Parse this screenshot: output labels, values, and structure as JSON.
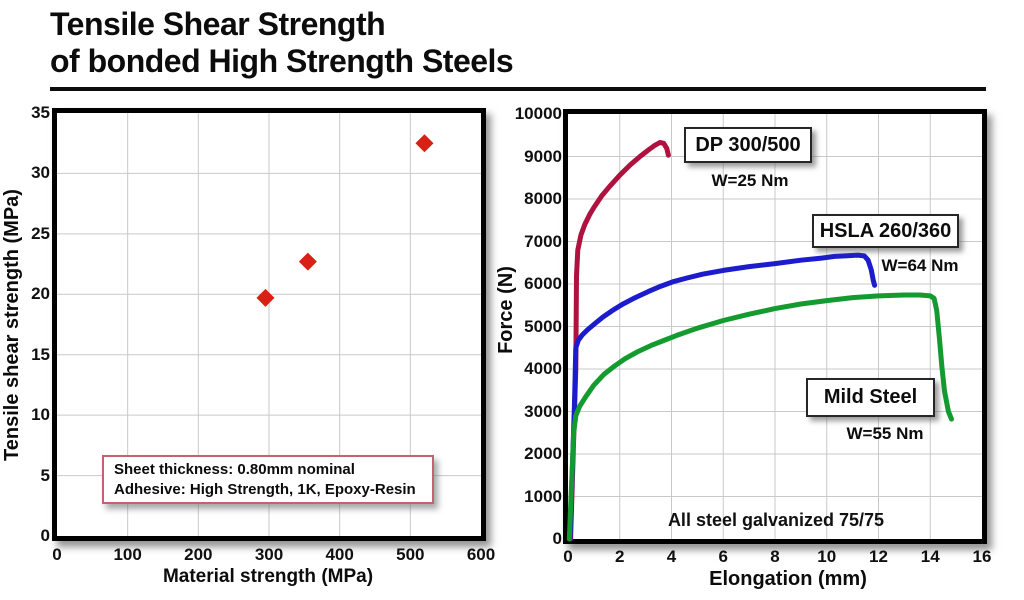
{
  "title": {
    "line1": "Tensile Shear Strength",
    "line2": "of bonded High Strength Steels"
  },
  "colors": {
    "dp_curve": "#b01240",
    "hsla_curve": "#1c1ccd",
    "mild_curve": "#149b30",
    "scatter_marker": "#d92015",
    "gridline": "#c9c9c9",
    "annotation_border": "#c4636f"
  },
  "chart_data": [
    {
      "id": "shear-scatter",
      "type": "scatter",
      "xlabel": "Material strength (MPa)",
      "ylabel": "Tensile shear strength (MPa)",
      "xlim": [
        0,
        600
      ],
      "ylim": [
        0,
        35
      ],
      "xticks": [
        0,
        100,
        200,
        300,
        400,
        500,
        600
      ],
      "yticks": [
        0,
        5,
        10,
        15,
        20,
        25,
        30,
        35
      ],
      "grid": true,
      "marker": "diamond",
      "marker_color": "#d92015",
      "points": [
        [
          295,
          19.7
        ],
        [
          355,
          22.7
        ],
        [
          520,
          32.5
        ]
      ],
      "annotation": {
        "line1": "Sheet thickness: 0.80mm nominal",
        "line2": "Adhesive: High Strength, 1K, Epoxy-Resin"
      }
    },
    {
      "id": "force-elongation",
      "type": "line",
      "xlabel": "Elongation (mm)",
      "ylabel": "Force (N)",
      "xlim": [
        0,
        16
      ],
      "ylim": [
        0,
        10000
      ],
      "xticks": [
        0,
        2,
        4,
        6,
        8,
        10,
        12,
        14,
        16
      ],
      "yticks": [
        0,
        1000,
        2000,
        3000,
        4000,
        5000,
        6000,
        7000,
        8000,
        9000,
        10000
      ],
      "grid": true,
      "note": "All steel galvanized 75/75",
      "series": [
        {
          "name": "DP 300/500",
          "label": "DP 300/500",
          "sublabel": "W=25 Nm",
          "color": "#b01240",
          "points": [
            [
              0.1,
              0
            ],
            [
              0.3,
              4000
            ],
            [
              0.33,
              6200
            ],
            [
              0.38,
              6800
            ],
            [
              0.5,
              7150
            ],
            [
              0.65,
              7400
            ],
            [
              0.85,
              7650
            ],
            [
              1.0,
              7800
            ],
            [
              1.3,
              8070
            ],
            [
              1.6,
              8290
            ],
            [
              2.0,
              8560
            ],
            [
              2.4,
              8800
            ],
            [
              2.8,
              9010
            ],
            [
              3.1,
              9150
            ],
            [
              3.35,
              9260
            ],
            [
              3.55,
              9330
            ],
            [
              3.7,
              9310
            ],
            [
              3.82,
              9190
            ],
            [
              3.88,
              9030
            ]
          ]
        },
        {
          "name": "HSLA 260/360",
          "label": "HSLA 260/360",
          "sublabel": "W=64 Nm",
          "color": "#1c1ccd",
          "points": [
            [
              0.08,
              0
            ],
            [
              0.25,
              3200
            ],
            [
              0.3,
              4500
            ],
            [
              0.4,
              4680
            ],
            [
              0.55,
              4800
            ],
            [
              0.75,
              4920
            ],
            [
              1.0,
              5050
            ],
            [
              1.35,
              5220
            ],
            [
              1.7,
              5370
            ],
            [
              2.1,
              5520
            ],
            [
              2.6,
              5680
            ],
            [
              3.1,
              5820
            ],
            [
              3.6,
              5950
            ],
            [
              4.1,
              6060
            ],
            [
              4.6,
              6140
            ],
            [
              5.2,
              6230
            ],
            [
              6.0,
              6320
            ],
            [
              7.0,
              6410
            ],
            [
              8.0,
              6480
            ],
            [
              9.0,
              6560
            ],
            [
              9.8,
              6610
            ],
            [
              10.3,
              6650
            ],
            [
              10.7,
              6660
            ],
            [
              11.2,
              6680
            ],
            [
              11.45,
              6660
            ],
            [
              11.6,
              6560
            ],
            [
              11.72,
              6330
            ],
            [
              11.8,
              6080
            ],
            [
              11.85,
              5970
            ]
          ]
        },
        {
          "name": "Mild Steel",
          "label": "Mild Steel",
          "sublabel": "W=55 Nm",
          "color": "#149b30",
          "points": [
            [
              0.05,
              0
            ],
            [
              0.22,
              2500
            ],
            [
              0.3,
              2900
            ],
            [
              0.45,
              3120
            ],
            [
              0.7,
              3360
            ],
            [
              1.0,
              3620
            ],
            [
              1.4,
              3880
            ],
            [
              1.8,
              4070
            ],
            [
              2.2,
              4240
            ],
            [
              2.7,
              4410
            ],
            [
              3.2,
              4550
            ],
            [
              3.7,
              4670
            ],
            [
              4.2,
              4790
            ],
            [
              5.0,
              4960
            ],
            [
              6.0,
              5140
            ],
            [
              7.0,
              5290
            ],
            [
              8.0,
              5420
            ],
            [
              9.0,
              5530
            ],
            [
              10.0,
              5610
            ],
            [
              11.0,
              5680
            ],
            [
              12.0,
              5720
            ],
            [
              13.0,
              5740
            ],
            [
              13.6,
              5740
            ],
            [
              14.0,
              5720
            ],
            [
              14.15,
              5660
            ],
            [
              14.25,
              5380
            ],
            [
              14.35,
              4750
            ],
            [
              14.45,
              4050
            ],
            [
              14.55,
              3480
            ],
            [
              14.7,
              3000
            ],
            [
              14.82,
              2820
            ]
          ]
        }
      ]
    }
  ]
}
